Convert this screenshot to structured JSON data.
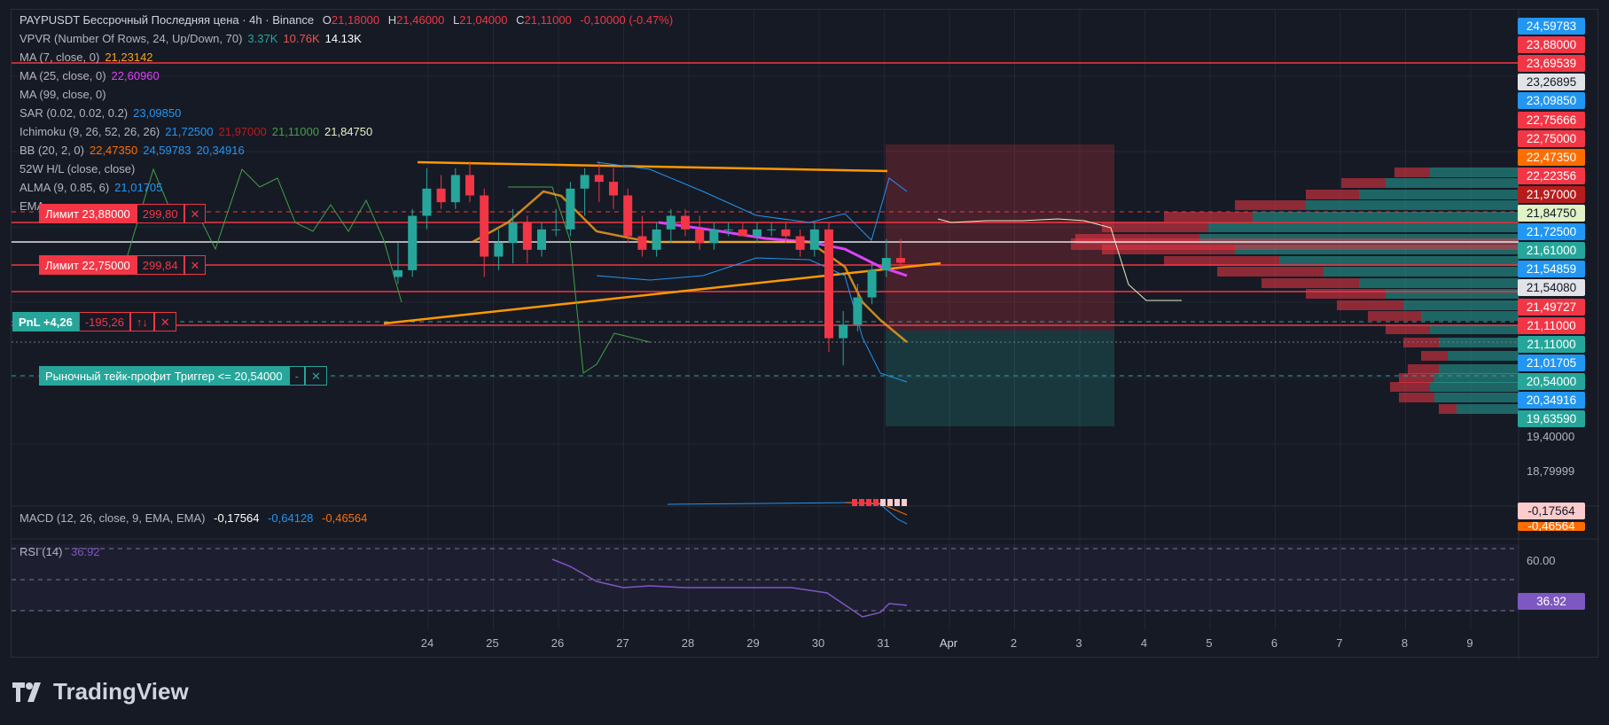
{
  "header": {
    "symbol": "PAYPUSDT Бессрочный Последняя цена · 4h · Binance",
    "o_label": "O",
    "o_value": "21,18000",
    "h_label": "H",
    "h_value": "21,46000",
    "l_label": "L",
    "l_value": "21,04000",
    "c_label": "C",
    "c_value": "21,11000",
    "change": "-0,10000 (-0.47%)"
  },
  "indicators": [
    {
      "name": "VPVR (Number Of Rows, 24, Up/Down, 70)",
      "values": [
        {
          "v": "3.37K",
          "color": "#26a69a"
        },
        {
          "v": "10.76K",
          "color": "#ef5350"
        },
        {
          "v": "14.13K",
          "color": "#ffffff"
        }
      ]
    },
    {
      "name": "MA (7, close, 0)",
      "values": [
        {
          "v": "21,23142",
          "color": "#f7a21b"
        }
      ]
    },
    {
      "name": "MA (25, close, 0)",
      "values": [
        {
          "v": "22,60960",
          "color": "#e040fb"
        }
      ]
    },
    {
      "name": "MA (99, close, 0)",
      "values": []
    },
    {
      "name": "SAR (0.02, 0.02, 0.2)",
      "values": [
        {
          "v": "23,09850",
          "color": "#2196f3"
        }
      ]
    },
    {
      "name": "Ichimoku (9, 26, 52, 26, 26)",
      "values": [
        {
          "v": "21,72500",
          "color": "#2196f3"
        },
        {
          "v": "21,97000",
          "color": "#b71c1c"
        },
        {
          "v": "21,11000",
          "color": "#43a047"
        },
        {
          "v": "21,84750",
          "color": "#e0f2c6"
        }
      ]
    },
    {
      "name": "BB (20, 2, 0)",
      "values": [
        {
          "v": "22,47350",
          "color": "#ff6d00"
        },
        {
          "v": "24,59783",
          "color": "#2196f3"
        },
        {
          "v": "20,34916",
          "color": "#2196f3"
        }
      ]
    },
    {
      "name": "52W H/L (close, close)",
      "values": []
    },
    {
      "name": "ALMA (9, 0.85, 6)",
      "values": [
        {
          "v": "21,01705",
          "color": "#2196f3"
        }
      ]
    },
    {
      "name": "EMA",
      "values": []
    }
  ],
  "orders": [
    {
      "label": "Лимит 23,88000",
      "qty": "299,80"
    },
    {
      "label": "Лимит 22,75000",
      "qty": "299,84"
    }
  ],
  "pnl": {
    "label": "PnL +4,26",
    "value": "-195,26",
    "arrows": "↑↓"
  },
  "tp_order": {
    "label": "Рыночный тейк-профит Триггер <= 20,54000",
    "dash": "-"
  },
  "price_tags": [
    {
      "v": "24,59783",
      "bg": "#2196f3",
      "fg": "#ffffff"
    },
    {
      "v": "23,88000",
      "bg": "#f23645",
      "fg": "#ffffff"
    },
    {
      "v": "23,69539",
      "bg": "#f23645",
      "fg": "#ffffff"
    },
    {
      "v": "23,26895",
      "bg": "#e1e3e8",
      "fg": "#131722"
    },
    {
      "v": "23,09850",
      "bg": "#2196f3",
      "fg": "#ffffff"
    },
    {
      "v": "22,75666",
      "bg": "#f23645",
      "fg": "#ffffff"
    },
    {
      "v": "22,75000",
      "bg": "#f23645",
      "fg": "#ffffff"
    },
    {
      "v": "22,47350",
      "bg": "#ff6d00",
      "fg": "#ffffff"
    },
    {
      "v": "22,22356",
      "bg": "#f23645",
      "fg": "#ffffff"
    },
    {
      "v": "21,97000",
      "bg": "#b71c1c",
      "fg": "#ffffff"
    },
    {
      "v": "21,84750",
      "bg": "#e0f2c6",
      "fg": "#131722"
    },
    {
      "v": "21,72500",
      "bg": "#2196f3",
      "fg": "#ffffff"
    },
    {
      "v": "21,61000",
      "bg": "#26a69a",
      "fg": "#ffffff"
    },
    {
      "v": "21,54859",
      "bg": "#2196f3",
      "fg": "#ffffff"
    },
    {
      "v": "21,54080",
      "bg": "#e1e3e8",
      "fg": "#131722"
    },
    {
      "v": "21,49727",
      "bg": "#f23645",
      "fg": "#ffffff"
    },
    {
      "v": "21,11000",
      "bg": "#f23645",
      "fg": "#ffffff"
    },
    {
      "v": "21,11000",
      "bg": "#26a69a",
      "fg": "#ffffff"
    },
    {
      "v": "21,01705",
      "bg": "#2196f3",
      "fg": "#ffffff"
    },
    {
      "v": "20,54000",
      "bg": "#26a69a",
      "fg": "#ffffff"
    },
    {
      "v": "20,34916",
      "bg": "#2196f3",
      "fg": "#ffffff"
    },
    {
      "v": "19,63590",
      "bg": "#26a69a",
      "fg": "#ffffff"
    }
  ],
  "y_axis": [
    "19,40000",
    "18,79999"
  ],
  "macd": {
    "name": "MACD (12, 26, close, 9, EMA, EMA)",
    "v1": "-0,17564",
    "v2": "-0,64128",
    "v3": "-0,46564",
    "tag1": "-0,17564",
    "tag2": "-0,46564"
  },
  "rsi": {
    "name": "RSI (14)",
    "value": "36.92",
    "level": "60.00",
    "tag": "36.92"
  },
  "dates": [
    "24",
    "25",
    "26",
    "27",
    "28",
    "29",
    "30",
    "31",
    "Apr",
    "2",
    "3",
    "4",
    "5",
    "6",
    "7",
    "8",
    "9"
  ],
  "watermark": "TradingView",
  "chart_data": {
    "type": "candlestick",
    "ylim": [
      18.6,
      24.7
    ],
    "candles": [
      {
        "o": 20.9,
        "h": 21.4,
        "l": 20.8,
        "c": 21.0
      },
      {
        "o": 21.0,
        "h": 21.9,
        "l": 20.9,
        "c": 21.8
      },
      {
        "o": 21.8,
        "h": 22.5,
        "l": 21.6,
        "c": 22.2
      },
      {
        "o": 22.2,
        "h": 22.4,
        "l": 21.9,
        "c": 22.0
      },
      {
        "o": 22.0,
        "h": 22.5,
        "l": 21.9,
        "c": 22.4
      },
      {
        "o": 22.4,
        "h": 22.6,
        "l": 22.0,
        "c": 22.1
      },
      {
        "o": 22.1,
        "h": 22.2,
        "l": 20.9,
        "c": 21.2
      },
      {
        "o": 21.2,
        "h": 21.6,
        "l": 21.0,
        "c": 21.4
      },
      {
        "o": 21.4,
        "h": 21.9,
        "l": 21.1,
        "c": 21.7
      },
      {
        "o": 21.7,
        "h": 21.8,
        "l": 21.1,
        "c": 21.3
      },
      {
        "o": 21.3,
        "h": 21.7,
        "l": 21.2,
        "c": 21.6
      },
      {
        "o": 21.6,
        "h": 21.9,
        "l": 21.5,
        "c": 21.6
      },
      {
        "o": 21.6,
        "h": 22.3,
        "l": 21.5,
        "c": 22.2
      },
      {
        "o": 22.2,
        "h": 22.5,
        "l": 21.8,
        "c": 22.4
      },
      {
        "o": 22.4,
        "h": 22.6,
        "l": 22.0,
        "c": 22.3
      },
      {
        "o": 22.3,
        "h": 22.5,
        "l": 21.9,
        "c": 22.1
      },
      {
        "o": 22.1,
        "h": 22.2,
        "l": 21.4,
        "c": 21.5
      },
      {
        "o": 21.5,
        "h": 21.8,
        "l": 21.2,
        "c": 21.3
      },
      {
        "o": 21.3,
        "h": 21.7,
        "l": 21.2,
        "c": 21.6
      },
      {
        "o": 21.6,
        "h": 21.9,
        "l": 21.4,
        "c": 21.8
      },
      {
        "o": 21.8,
        "h": 21.9,
        "l": 21.5,
        "c": 21.6
      },
      {
        "o": 21.6,
        "h": 21.8,
        "l": 21.3,
        "c": 21.4
      },
      {
        "o": 21.4,
        "h": 21.7,
        "l": 21.3,
        "c": 21.6
      },
      {
        "o": 21.6,
        "h": 21.7,
        "l": 21.5,
        "c": 21.6
      },
      {
        "o": 21.6,
        "h": 21.7,
        "l": 21.5,
        "c": 21.5
      },
      {
        "o": 21.5,
        "h": 21.7,
        "l": 21.4,
        "c": 21.6
      },
      {
        "o": 21.6,
        "h": 21.7,
        "l": 21.5,
        "c": 21.6
      },
      {
        "o": 21.6,
        "h": 21.7,
        "l": 21.4,
        "c": 21.5
      },
      {
        "o": 21.5,
        "h": 21.6,
        "l": 21.2,
        "c": 21.3
      },
      {
        "o": 21.3,
        "h": 21.7,
        "l": 21.2,
        "c": 21.6
      },
      {
        "o": 21.6,
        "h": 21.7,
        "l": 19.8,
        "c": 20.0
      },
      {
        "o": 20.0,
        "h": 20.4,
        "l": 19.6,
        "c": 20.2
      },
      {
        "o": 20.2,
        "h": 20.8,
        "l": 20.1,
        "c": 20.6
      },
      {
        "o": 20.6,
        "h": 21.1,
        "l": 20.5,
        "c": 21.0
      },
      {
        "o": 21.0,
        "h": 21.46,
        "l": 20.9,
        "c": 21.18
      },
      {
        "o": 21.18,
        "h": 21.46,
        "l": 21.04,
        "c": 21.11
      }
    ]
  }
}
